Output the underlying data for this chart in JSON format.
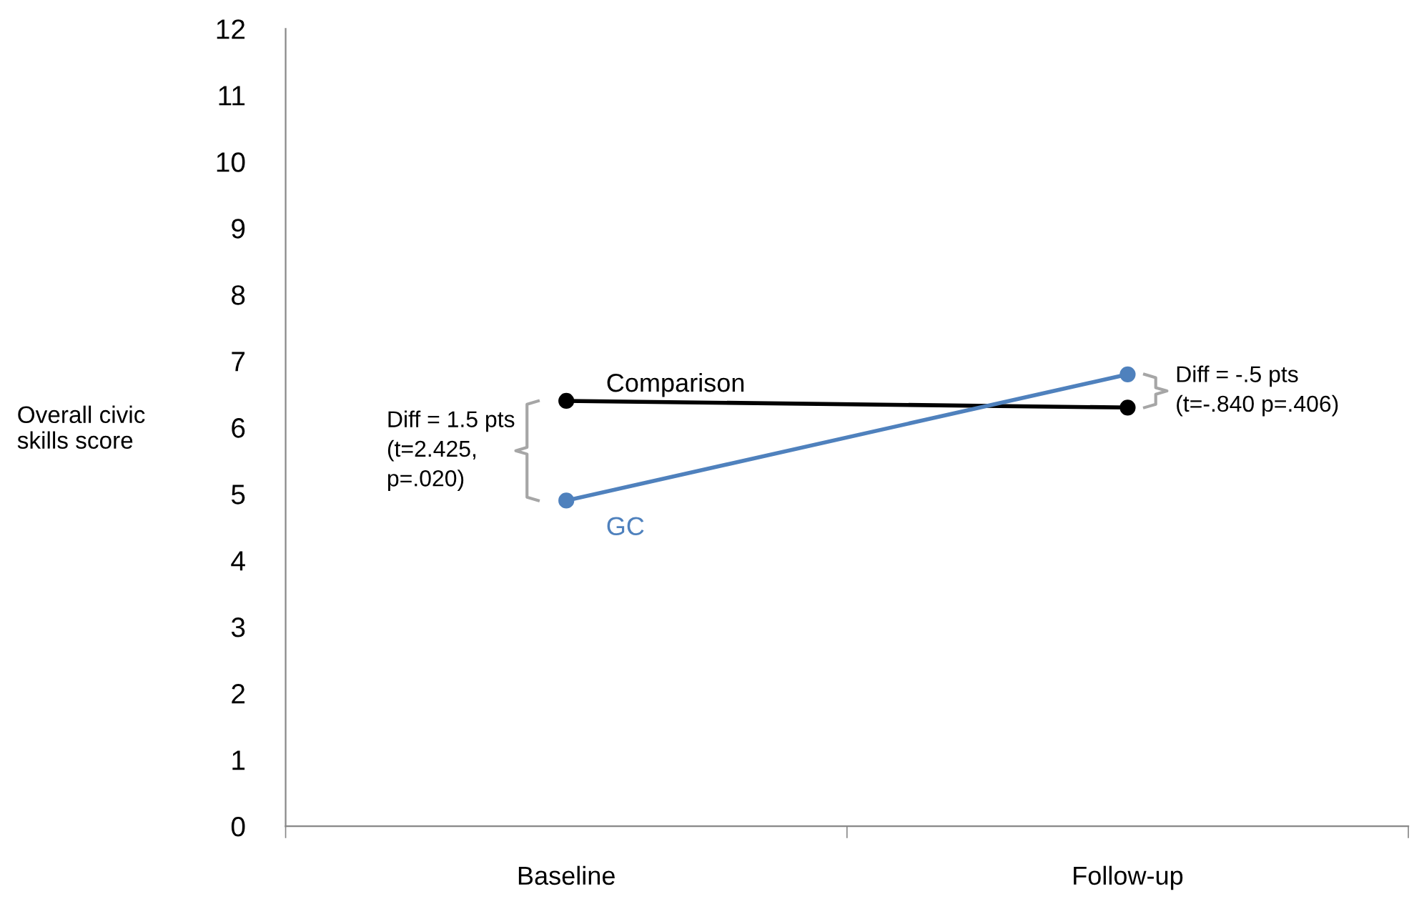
{
  "chart_data": {
    "type": "line",
    "ylabel": "Overall civic\nskills score",
    "categories": [
      "Baseline",
      "Follow-up"
    ],
    "series": [
      {
        "name": "Comparison",
        "color": "#000000",
        "values": [
          6.4,
          6.3
        ]
      },
      {
        "name": "GC",
        "color": "#4f81bd",
        "values": [
          4.9,
          6.8
        ]
      }
    ],
    "ylim": [
      0,
      12
    ],
    "yticks": [
      0,
      1,
      2,
      3,
      4,
      5,
      6,
      7,
      8,
      9,
      10,
      11,
      12
    ],
    "grid": false,
    "legend": false,
    "marker": "circle",
    "line_style": "solid",
    "annotations": [
      "Diff = 1.5 pts\n(t=2.425,\np=.020)",
      "Diff = -.5 pts\n(t=-.840 p=.406)"
    ]
  }
}
